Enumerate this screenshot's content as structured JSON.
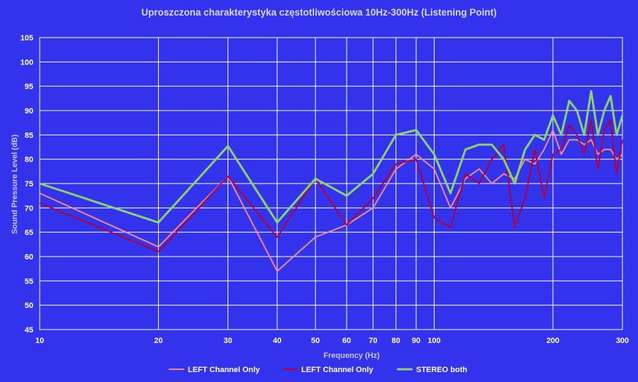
{
  "chart_data": {
    "type": "line",
    "title": "Uproszczona charakterystyka częstotliwościowa 10Hz-300Hz (Listening Point)",
    "xlabel": "Frequency (Hz)",
    "ylabel": "Sound Pressure Level (dB)",
    "xscale": "log",
    "xlim": [
      10,
      300
    ],
    "ylim": [
      45,
      105
    ],
    "x_ticks": [
      10,
      20,
      30,
      40,
      50,
      60,
      70,
      80,
      90,
      100,
      200,
      300
    ],
    "y_ticks": [
      45,
      50,
      55,
      60,
      65,
      70,
      75,
      80,
      85,
      90,
      95,
      100,
      105
    ],
    "grid": true,
    "legend_position": "bottom",
    "colors": {
      "background": "#3333ee",
      "grid": "#ffffff"
    },
    "series": [
      {
        "name": "LEFT Channel Only",
        "color": "#f08a8a",
        "x": [
          10,
          20,
          30,
          40,
          50,
          60,
          70,
          80,
          90,
          100,
          110,
          120,
          130,
          140,
          150,
          160,
          170,
          180,
          190,
          200,
          210,
          220,
          230,
          240,
          250,
          260,
          270,
          280,
          290,
          300
        ],
        "y": [
          73,
          62,
          76.5,
          57,
          64,
          66.5,
          70,
          78,
          81,
          78,
          70,
          76,
          78,
          75,
          77,
          76,
          80,
          79,
          82,
          86,
          81,
          84,
          84,
          83,
          84,
          81,
          82,
          82,
          80,
          81
        ]
      },
      {
        "name": "LEFT Channel Only",
        "color": "#b3003c",
        "x": [
          10,
          20,
          30,
          40,
          50,
          60,
          70,
          80,
          90,
          100,
          110,
          120,
          130,
          140,
          150,
          160,
          170,
          180,
          190,
          200,
          210,
          220,
          230,
          240,
          250,
          260,
          270,
          280,
          290,
          300
        ],
        "y": [
          71,
          61,
          76.5,
          64,
          76,
          66.5,
          72,
          79,
          80,
          68,
          66,
          77,
          75,
          80,
          83,
          66,
          72,
          82,
          72,
          81,
          82,
          87,
          85,
          81,
          88,
          78,
          86,
          88,
          77,
          84
        ]
      },
      {
        "name": "STEREO both",
        "color": "#88d46a",
        "x": [
          10,
          20,
          30,
          40,
          50,
          60,
          70,
          80,
          90,
          100,
          110,
          120,
          130,
          140,
          150,
          160,
          170,
          180,
          190,
          200,
          210,
          220,
          230,
          240,
          250,
          260,
          270,
          280,
          290,
          300
        ],
        "y": [
          75,
          67,
          82.7,
          67,
          76,
          72.5,
          77,
          85,
          86,
          81,
          73,
          82,
          83,
          83,
          80,
          75,
          82,
          85,
          84,
          89,
          85,
          92,
          90,
          85,
          94,
          85,
          90,
          93,
          85,
          89
        ]
      }
    ]
  }
}
